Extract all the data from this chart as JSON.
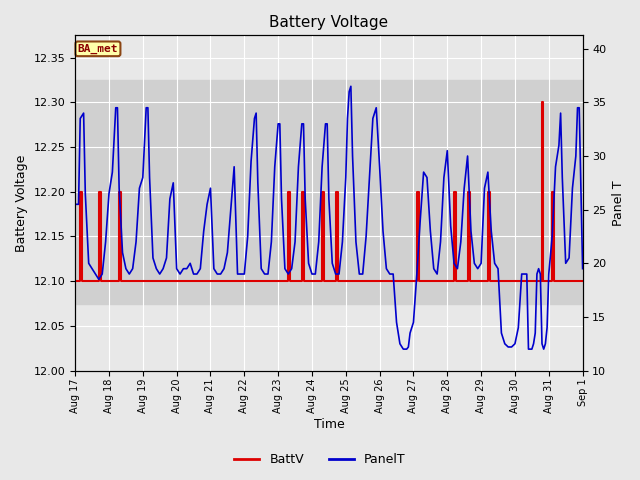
{
  "title": "Battery Voltage",
  "xlabel": "Time",
  "ylabel_left": "Battery Voltage",
  "ylabel_right": "Panel T",
  "annotation": "BA_met",
  "ylim_left": [
    12.0,
    12.375
  ],
  "ylim_right": [
    10,
    41.25
  ],
  "yticks_left": [
    12.0,
    12.05,
    12.1,
    12.15,
    12.2,
    12.25,
    12.3,
    12.35
  ],
  "yticks_right": [
    10,
    15,
    20,
    25,
    30,
    35,
    40
  ],
  "background_color": "#e8e8e8",
  "plot_bg_color": "#e8e8e8",
  "inner_band_lo": 12.075,
  "inner_band_hi": 12.325,
  "inner_band_color": "#d0d0d0",
  "grid_color": "#ffffff",
  "batt_color": "#dd0000",
  "panel_color": "#0000cc",
  "legend_batt": "BattV",
  "legend_panel": "PanelT",
  "batt_data": [
    [
      0.0,
      12.1
    ],
    [
      0.05,
      12.1
    ],
    [
      0.15,
      12.2
    ],
    [
      0.2,
      12.2
    ],
    [
      0.21,
      12.1
    ],
    [
      0.5,
      12.1
    ],
    [
      0.7,
      12.2
    ],
    [
      0.75,
      12.2
    ],
    [
      0.76,
      12.1
    ],
    [
      1.0,
      12.1
    ],
    [
      1.3,
      12.2
    ],
    [
      1.35,
      12.2
    ],
    [
      1.36,
      12.1
    ],
    [
      1.6,
      12.1
    ],
    [
      2.0,
      12.1
    ],
    [
      2.3,
      12.1
    ],
    [
      2.6,
      12.1
    ],
    [
      3.0,
      12.1
    ],
    [
      3.5,
      12.1
    ],
    [
      4.0,
      12.1
    ],
    [
      4.5,
      12.1
    ],
    [
      5.0,
      12.1
    ],
    [
      5.5,
      12.1
    ],
    [
      6.0,
      12.1
    ],
    [
      6.3,
      12.2
    ],
    [
      6.35,
      12.2
    ],
    [
      6.36,
      12.1
    ],
    [
      6.7,
      12.2
    ],
    [
      6.75,
      12.2
    ],
    [
      6.76,
      12.1
    ],
    [
      7.0,
      12.1
    ],
    [
      7.3,
      12.2
    ],
    [
      7.35,
      12.2
    ],
    [
      7.36,
      12.1
    ],
    [
      7.7,
      12.2
    ],
    [
      7.75,
      12.2
    ],
    [
      7.76,
      12.1
    ],
    [
      8.0,
      12.1
    ],
    [
      8.5,
      12.1
    ],
    [
      9.0,
      12.1
    ],
    [
      9.4,
      12.1
    ],
    [
      9.41,
      12.1
    ],
    [
      10.0,
      12.1
    ],
    [
      10.1,
      12.2
    ],
    [
      10.15,
      12.2
    ],
    [
      10.16,
      12.1
    ],
    [
      10.5,
      12.1
    ],
    [
      11.0,
      12.1
    ],
    [
      11.2,
      12.2
    ],
    [
      11.25,
      12.2
    ],
    [
      11.26,
      12.1
    ],
    [
      11.5,
      12.1
    ],
    [
      11.6,
      12.2
    ],
    [
      11.65,
      12.2
    ],
    [
      11.66,
      12.1
    ],
    [
      12.0,
      12.1
    ],
    [
      12.2,
      12.2
    ],
    [
      12.25,
      12.2
    ],
    [
      12.26,
      12.1
    ],
    [
      12.6,
      12.1
    ],
    [
      13.0,
      12.1
    ],
    [
      13.2,
      12.1
    ],
    [
      13.5,
      12.1
    ],
    [
      13.8,
      12.3
    ],
    [
      13.81,
      12.3
    ],
    [
      13.82,
      12.1
    ],
    [
      14.0,
      12.1
    ],
    [
      14.1,
      12.2
    ],
    [
      14.15,
      12.2
    ],
    [
      14.16,
      12.1
    ],
    [
      14.5,
      12.1
    ],
    [
      15.0,
      12.1
    ]
  ],
  "panel_data": [
    [
      0.0,
      25.5
    ],
    [
      0.1,
      25.5
    ],
    [
      0.15,
      33.5
    ],
    [
      0.25,
      34.0
    ],
    [
      0.3,
      26.5
    ],
    [
      0.4,
      20.0
    ],
    [
      0.5,
      19.5
    ],
    [
      0.6,
      19.0
    ],
    [
      0.7,
      18.5
    ],
    [
      0.8,
      19.0
    ],
    [
      0.9,
      22.0
    ],
    [
      1.0,
      26.5
    ],
    [
      1.1,
      28.5
    ],
    [
      1.2,
      34.5
    ],
    [
      1.25,
      34.5
    ],
    [
      1.3,
      27.0
    ],
    [
      1.4,
      21.0
    ],
    [
      1.5,
      19.5
    ],
    [
      1.6,
      19.0
    ],
    [
      1.7,
      19.5
    ],
    [
      1.8,
      22.0
    ],
    [
      1.9,
      27.0
    ],
    [
      2.0,
      28.0
    ],
    [
      2.1,
      34.5
    ],
    [
      2.15,
      34.5
    ],
    [
      2.2,
      28.0
    ],
    [
      2.3,
      20.5
    ],
    [
      2.4,
      19.5
    ],
    [
      2.5,
      19.0
    ],
    [
      2.6,
      19.5
    ],
    [
      2.7,
      20.5
    ],
    [
      2.8,
      26.0
    ],
    [
      2.9,
      27.5
    ],
    [
      3.0,
      19.5
    ],
    [
      3.1,
      19.0
    ],
    [
      3.2,
      19.5
    ],
    [
      3.3,
      19.5
    ],
    [
      3.4,
      20.0
    ],
    [
      3.5,
      19.0
    ],
    [
      3.6,
      19.0
    ],
    [
      3.7,
      19.5
    ],
    [
      3.8,
      23.0
    ],
    [
      3.9,
      25.5
    ],
    [
      4.0,
      27.0
    ],
    [
      4.1,
      19.5
    ],
    [
      4.2,
      19.0
    ],
    [
      4.3,
      19.0
    ],
    [
      4.4,
      19.5
    ],
    [
      4.5,
      21.0
    ],
    [
      4.6,
      25.0
    ],
    [
      4.7,
      29.0
    ],
    [
      4.8,
      19.0
    ],
    [
      4.9,
      19.0
    ],
    [
      5.0,
      19.0
    ],
    [
      5.1,
      22.5
    ],
    [
      5.2,
      29.5
    ],
    [
      5.3,
      33.5
    ],
    [
      5.35,
      34.0
    ],
    [
      5.4,
      27.5
    ],
    [
      5.5,
      19.5
    ],
    [
      5.6,
      19.0
    ],
    [
      5.7,
      19.0
    ],
    [
      5.8,
      22.0
    ],
    [
      5.9,
      29.0
    ],
    [
      6.0,
      33.0
    ],
    [
      6.05,
      33.0
    ],
    [
      6.1,
      26.0
    ],
    [
      6.2,
      19.5
    ],
    [
      6.3,
      19.0
    ],
    [
      6.4,
      19.5
    ],
    [
      6.5,
      22.0
    ],
    [
      6.6,
      29.0
    ],
    [
      6.7,
      33.0
    ],
    [
      6.75,
      33.0
    ],
    [
      6.8,
      26.0
    ],
    [
      6.9,
      20.0
    ],
    [
      7.0,
      19.0
    ],
    [
      7.1,
      19.0
    ],
    [
      7.2,
      22.0
    ],
    [
      7.3,
      29.0
    ],
    [
      7.4,
      33.0
    ],
    [
      7.45,
      33.0
    ],
    [
      7.5,
      26.0
    ],
    [
      7.6,
      20.0
    ],
    [
      7.7,
      19.0
    ],
    [
      7.8,
      19.0
    ],
    [
      7.9,
      22.0
    ],
    [
      8.0,
      28.0
    ],
    [
      8.05,
      33.5
    ],
    [
      8.1,
      36.0
    ],
    [
      8.15,
      36.5
    ],
    [
      8.2,
      30.0
    ],
    [
      8.3,
      22.0
    ],
    [
      8.4,
      19.0
    ],
    [
      8.5,
      19.0
    ],
    [
      8.6,
      22.5
    ],
    [
      8.7,
      28.0
    ],
    [
      8.8,
      33.5
    ],
    [
      8.9,
      34.5
    ],
    [
      9.0,
      29.0
    ],
    [
      9.1,
      23.0
    ],
    [
      9.2,
      19.5
    ],
    [
      9.3,
      19.0
    ],
    [
      9.4,
      19.0
    ],
    [
      9.5,
      14.5
    ],
    [
      9.6,
      12.5
    ],
    [
      9.7,
      12.0
    ],
    [
      9.8,
      12.0
    ],
    [
      9.85,
      12.2
    ],
    [
      9.9,
      13.5
    ],
    [
      10.0,
      14.5
    ],
    [
      10.1,
      19.0
    ],
    [
      10.2,
      24.0
    ],
    [
      10.3,
      28.5
    ],
    [
      10.4,
      28.0
    ],
    [
      10.5,
      23.0
    ],
    [
      10.6,
      19.5
    ],
    [
      10.7,
      19.0
    ],
    [
      10.8,
      22.0
    ],
    [
      10.9,
      28.0
    ],
    [
      11.0,
      30.5
    ],
    [
      11.1,
      23.5
    ],
    [
      11.2,
      20.0
    ],
    [
      11.3,
      19.5
    ],
    [
      11.4,
      22.0
    ],
    [
      11.5,
      27.0
    ],
    [
      11.6,
      30.0
    ],
    [
      11.7,
      23.0
    ],
    [
      11.8,
      20.0
    ],
    [
      11.9,
      19.5
    ],
    [
      12.0,
      20.0
    ],
    [
      12.1,
      27.0
    ],
    [
      12.2,
      28.5
    ],
    [
      12.3,
      23.0
    ],
    [
      12.4,
      20.0
    ],
    [
      12.5,
      19.5
    ],
    [
      12.6,
      13.5
    ],
    [
      12.7,
      12.5
    ],
    [
      12.8,
      12.2
    ],
    [
      12.9,
      12.2
    ],
    [
      13.0,
      12.5
    ],
    [
      13.1,
      14.0
    ],
    [
      13.2,
      19.0
    ],
    [
      13.3,
      19.0
    ],
    [
      13.35,
      19.0
    ],
    [
      13.4,
      12.0
    ],
    [
      13.45,
      12.0
    ],
    [
      13.5,
      12.0
    ],
    [
      13.55,
      12.5
    ],
    [
      13.6,
      13.5
    ],
    [
      13.65,
      19.0
    ],
    [
      13.7,
      19.5
    ],
    [
      13.75,
      19.0
    ],
    [
      13.8,
      12.5
    ],
    [
      13.85,
      12.0
    ],
    [
      13.9,
      12.5
    ],
    [
      13.95,
      14.0
    ],
    [
      14.0,
      19.0
    ],
    [
      14.1,
      22.5
    ],
    [
      14.2,
      29.0
    ],
    [
      14.3,
      31.0
    ],
    [
      14.35,
      34.0
    ],
    [
      14.4,
      28.0
    ],
    [
      14.5,
      20.0
    ],
    [
      14.6,
      20.5
    ],
    [
      14.7,
      27.0
    ],
    [
      14.8,
      30.0
    ],
    [
      14.85,
      34.5
    ],
    [
      14.9,
      34.5
    ],
    [
      14.95,
      27.0
    ],
    [
      15.0,
      19.5
    ]
  ]
}
